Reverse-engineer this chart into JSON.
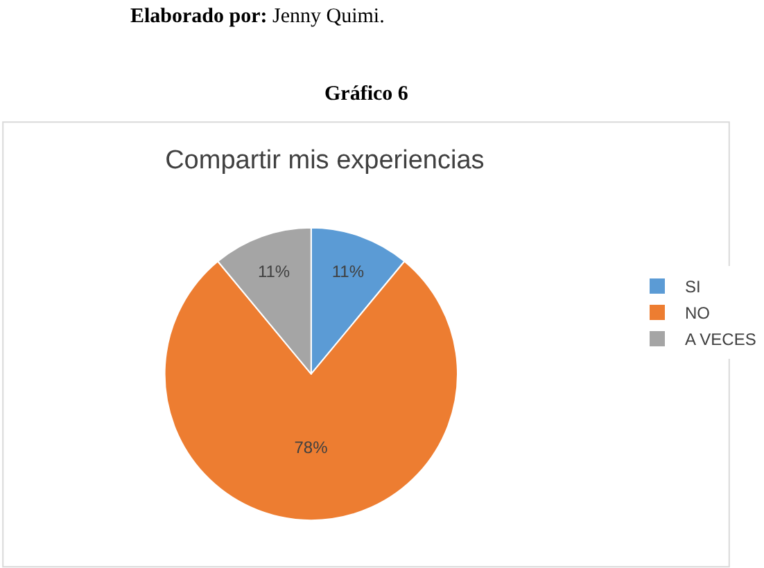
{
  "chart_data": {
    "type": "pie",
    "title": "Compartir mis experiencias",
    "annotations": [
      "Elaborado por: Jenny Quimi.",
      "Gráfico 6"
    ],
    "categories": [
      "SI",
      "NO",
      "A VECES"
    ],
    "values": [
      11,
      78,
      11
    ],
    "colors": [
      "#5b9bd5",
      "#ed7d31",
      "#a5a5a5"
    ],
    "value_labels": [
      "11%",
      "78%",
      "11%"
    ],
    "legend": "right"
  }
}
